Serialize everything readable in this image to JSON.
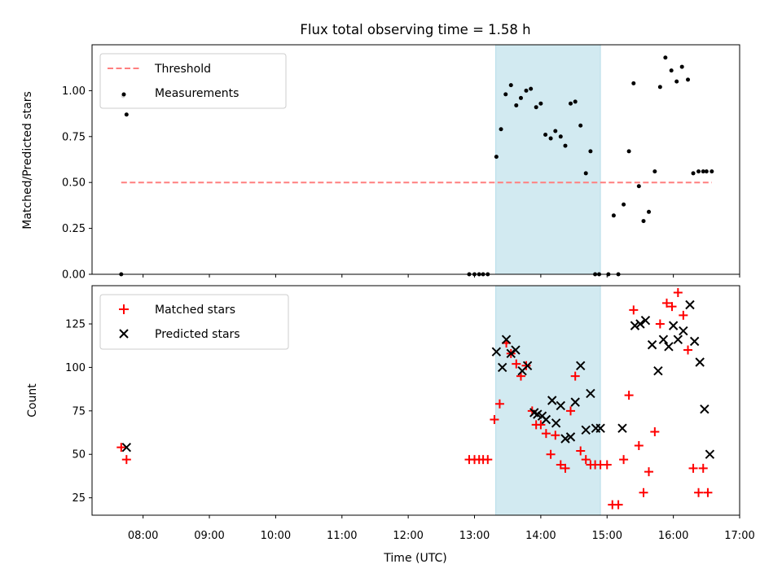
{
  "colors": {
    "threshold": "#ff7f7f",
    "measurement": "#000000",
    "matched": "#ff0000",
    "predicted": "#000000",
    "span_fill": "#add8e6"
  },
  "chart_data": [
    {
      "type": "scatter",
      "title": "Flux total observing time = 1.58 h",
      "xlabel": "",
      "ylabel": "Matched/Predicted stars",
      "xlim": [
        7.23,
        17.0
      ],
      "ylim": [
        0,
        1.25
      ],
      "yticks": [
        0,
        0.25,
        0.5,
        0.75,
        1.0
      ],
      "ytick_labels": [
        "0.00",
        "0.25",
        "0.50",
        "0.75",
        "1.00"
      ],
      "highlight_span": [
        13.32,
        14.9
      ],
      "legend": [
        "Threshold",
        "Measurements"
      ],
      "threshold": {
        "name": "Threshold",
        "value": 0.5,
        "x": [
          7.67,
          16.58
        ]
      },
      "series": [
        {
          "name": "Measurements",
          "x": [
            7.67,
            7.7,
            7.75,
            12.92,
            13.0,
            13.07,
            13.13,
            13.2,
            13.33,
            13.4,
            13.47,
            13.55,
            13.63,
            13.7,
            13.78,
            13.85,
            13.93,
            14.0,
            14.07,
            14.15,
            14.22,
            14.3,
            14.37,
            14.45,
            14.52,
            14.6,
            14.68,
            14.75,
            14.82,
            14.88,
            15.02,
            15.1,
            15.17,
            15.25,
            15.33,
            15.4,
            15.48,
            15.55,
            15.63,
            15.72,
            15.8,
            15.88,
            15.97,
            16.05,
            16.13,
            16.22,
            16.3,
            16.38,
            16.45,
            16.5,
            16.58
          ],
          "y": [
            0.0,
            0.97,
            0.87,
            0.0,
            0.0,
            0.0,
            0.0,
            0.0,
            0.64,
            0.79,
            0.98,
            1.03,
            0.92,
            0.96,
            1.0,
            1.01,
            0.91,
            0.93,
            0.76,
            0.74,
            0.78,
            0.75,
            0.7,
            0.93,
            0.94,
            0.81,
            0.55,
            0.67,
            0.0,
            0.0,
            0.0,
            0.32,
            0.0,
            0.38,
            0.67,
            1.04,
            0.48,
            0.29,
            0.34,
            0.56,
            1.02,
            1.18,
            1.11,
            1.05,
            1.13,
            1.06,
            0.55,
            0.56,
            0.56,
            0.56,
            0.56
          ]
        }
      ]
    },
    {
      "type": "scatter",
      "title": "",
      "xlabel": "Time (UTC)",
      "ylabel": "Count",
      "xlim": [
        7.23,
        17.0
      ],
      "ylim": [
        15,
        147
      ],
      "yticks": [
        25,
        50,
        75,
        100,
        125
      ],
      "ytick_labels": [
        "25",
        "50",
        "75",
        "100",
        "125"
      ],
      "xticks": [
        8,
        9,
        10,
        11,
        12,
        13,
        14,
        15,
        16,
        17
      ],
      "xtick_labels": [
        "08:00",
        "09:00",
        "10:00",
        "11:00",
        "12:00",
        "13:00",
        "14:00",
        "15:00",
        "16:00",
        "17:00"
      ],
      "highlight_span": [
        13.32,
        14.9
      ],
      "legend": [
        "Matched stars",
        "Predicted stars"
      ],
      "series": [
        {
          "name": "Matched stars",
          "marker": "plus",
          "x": [
            7.67,
            7.75,
            12.92,
            13.0,
            13.07,
            13.13,
            13.2,
            13.3,
            13.38,
            13.48,
            13.55,
            13.63,
            13.7,
            13.78,
            13.87,
            13.93,
            14.0,
            14.08,
            14.15,
            14.22,
            14.3,
            14.37,
            14.45,
            14.52,
            14.6,
            14.68,
            14.75,
            14.82,
            14.9,
            15.0,
            15.08,
            15.17,
            15.25,
            15.33,
            15.4,
            15.48,
            15.55,
            15.63,
            15.72,
            15.8,
            15.9,
            15.98,
            16.07,
            16.15,
            16.22,
            16.3,
            16.38,
            16.45,
            16.52
          ],
          "y": [
            54,
            47,
            47,
            47,
            47,
            47,
            47,
            70,
            79,
            114,
            108,
            102,
            95,
            101,
            75,
            67,
            67,
            62,
            50,
            61,
            44,
            42,
            75,
            95,
            52,
            47,
            44,
            44,
            44,
            44,
            21,
            21,
            47,
            84,
            133,
            55,
            28,
            40,
            63,
            125,
            137,
            135,
            143,
            130,
            110,
            42,
            28,
            42,
            28
          ]
        },
        {
          "name": "Predicted stars",
          "marker": "x",
          "x": [
            7.75,
            13.33,
            13.42,
            13.48,
            13.55,
            13.62,
            13.72,
            13.8,
            13.9,
            13.95,
            14.02,
            14.08,
            14.17,
            14.23,
            14.3,
            14.37,
            14.45,
            14.52,
            14.6,
            14.68,
            14.75,
            14.83,
            14.9,
            15.23,
            15.42,
            15.5,
            15.58,
            15.68,
            15.77,
            15.85,
            15.93,
            16.0,
            16.07,
            16.15,
            16.25,
            16.32,
            16.4,
            16.47,
            16.55
          ],
          "y": [
            54,
            109,
            100,
            116,
            108,
            110,
            98,
            101,
            74,
            73,
            72,
            70,
            81,
            68,
            78,
            59,
            60,
            80,
            101,
            64,
            85,
            65,
            65,
            65,
            124,
            125,
            127,
            113,
            98,
            116,
            112,
            124,
            116,
            121,
            136,
            115,
            103,
            76,
            50
          ]
        }
      ]
    }
  ]
}
